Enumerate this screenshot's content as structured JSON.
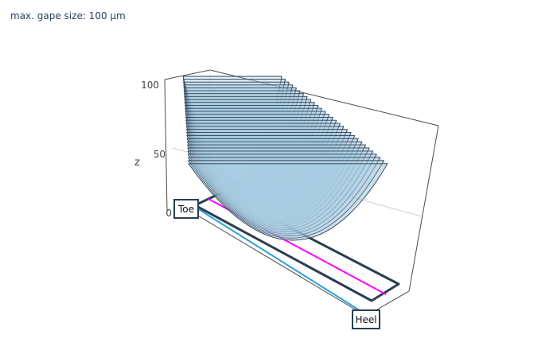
{
  "header": {
    "gap_label": "max. gape size: 100 µm"
  },
  "chart_data": {
    "type": "surface3d",
    "title": "",
    "z_axis": {
      "label": "z",
      "ticks": [
        0,
        50,
        100
      ],
      "range": [
        0,
        100
      ]
    },
    "grid": true,
    "surface": {
      "shape": "parabolic trough",
      "min_z": 0,
      "max_z_back": 100,
      "max_z_front": 65,
      "slices": 30
    },
    "annotations": [
      {
        "text": "Toe"
      },
      {
        "text": "Heel"
      }
    ],
    "colors": {
      "surface_fill": "#a9cce3",
      "surface_line": "#2c3e50",
      "blade_outline": "#2c3e50",
      "blade_line_magenta": "#ff00ff",
      "blade_line_cyan": "#29a3d9",
      "axis_text": "#444444"
    }
  }
}
